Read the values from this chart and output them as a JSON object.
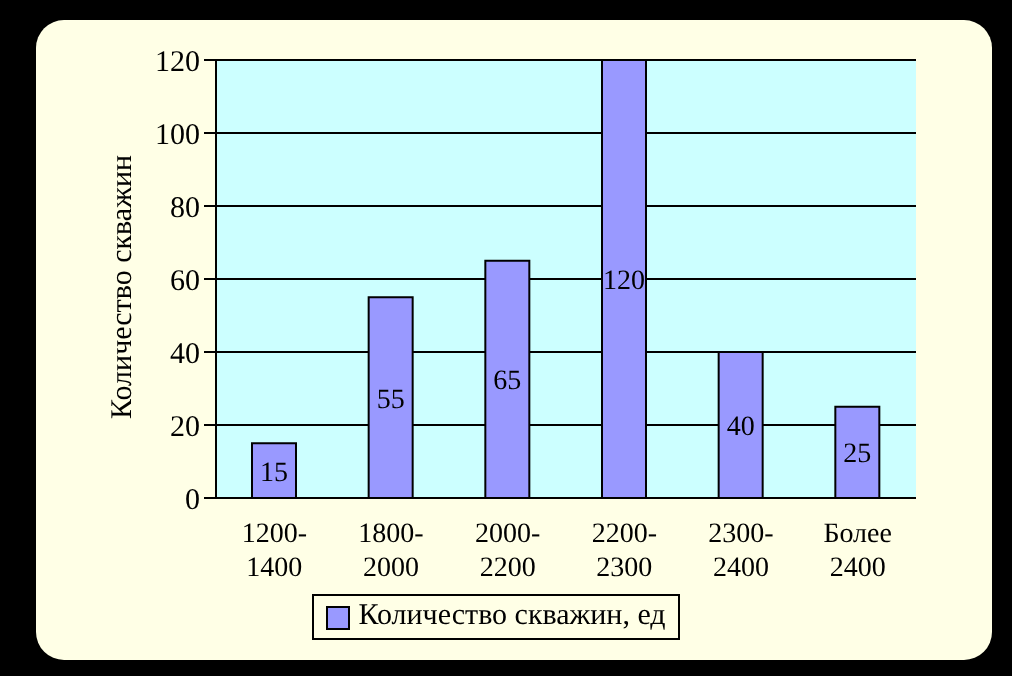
{
  "chart_data": {
    "type": "bar",
    "ylabel": "Количество скважин",
    "categories": [
      "1200-1400",
      "1800-2000",
      "2000-2200",
      "2200-2300",
      "2300-2400",
      "Более 2400"
    ],
    "series": [
      {
        "name": "Количество скважин, ед",
        "color": "#9999ff",
        "values": [
          15,
          55,
          65,
          120,
          40,
          25
        ]
      }
    ],
    "ylim": [
      0,
      120
    ],
    "yticks": [
      0,
      20,
      40,
      60,
      80,
      100,
      120
    ],
    "grid": "y",
    "legend": "bottom",
    "data_labels": true
  }
}
